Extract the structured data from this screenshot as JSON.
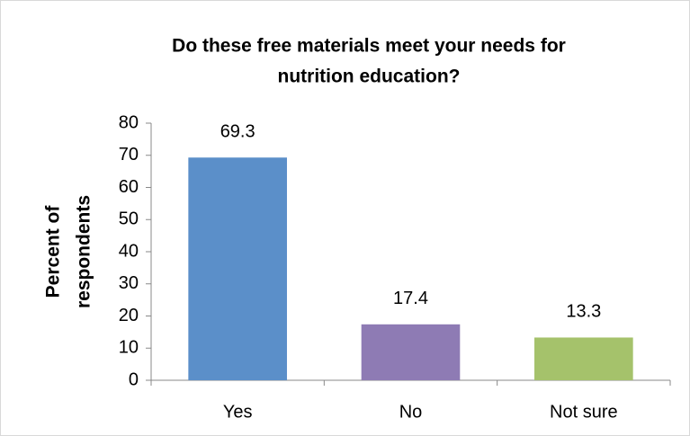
{
  "chart_data": {
    "type": "bar",
    "title": [
      "Do these free materials meet your needs for",
      "nutrition education?"
    ],
    "y_label": [
      "Percent of",
      "respondents"
    ],
    "categories": [
      "Yes",
      "No",
      "Not sure"
    ],
    "values": [
      69.3,
      17.4,
      13.3
    ],
    "value_labels": [
      "69.3",
      "17.4",
      "13.3"
    ],
    "colors": [
      "#5b8fc9",
      "#8e7bb4",
      "#a5c26b"
    ],
    "ylim": [
      0,
      80
    ],
    "yticks": [
      0,
      10,
      20,
      30,
      40,
      50,
      60,
      70,
      80
    ],
    "grid": false
  }
}
